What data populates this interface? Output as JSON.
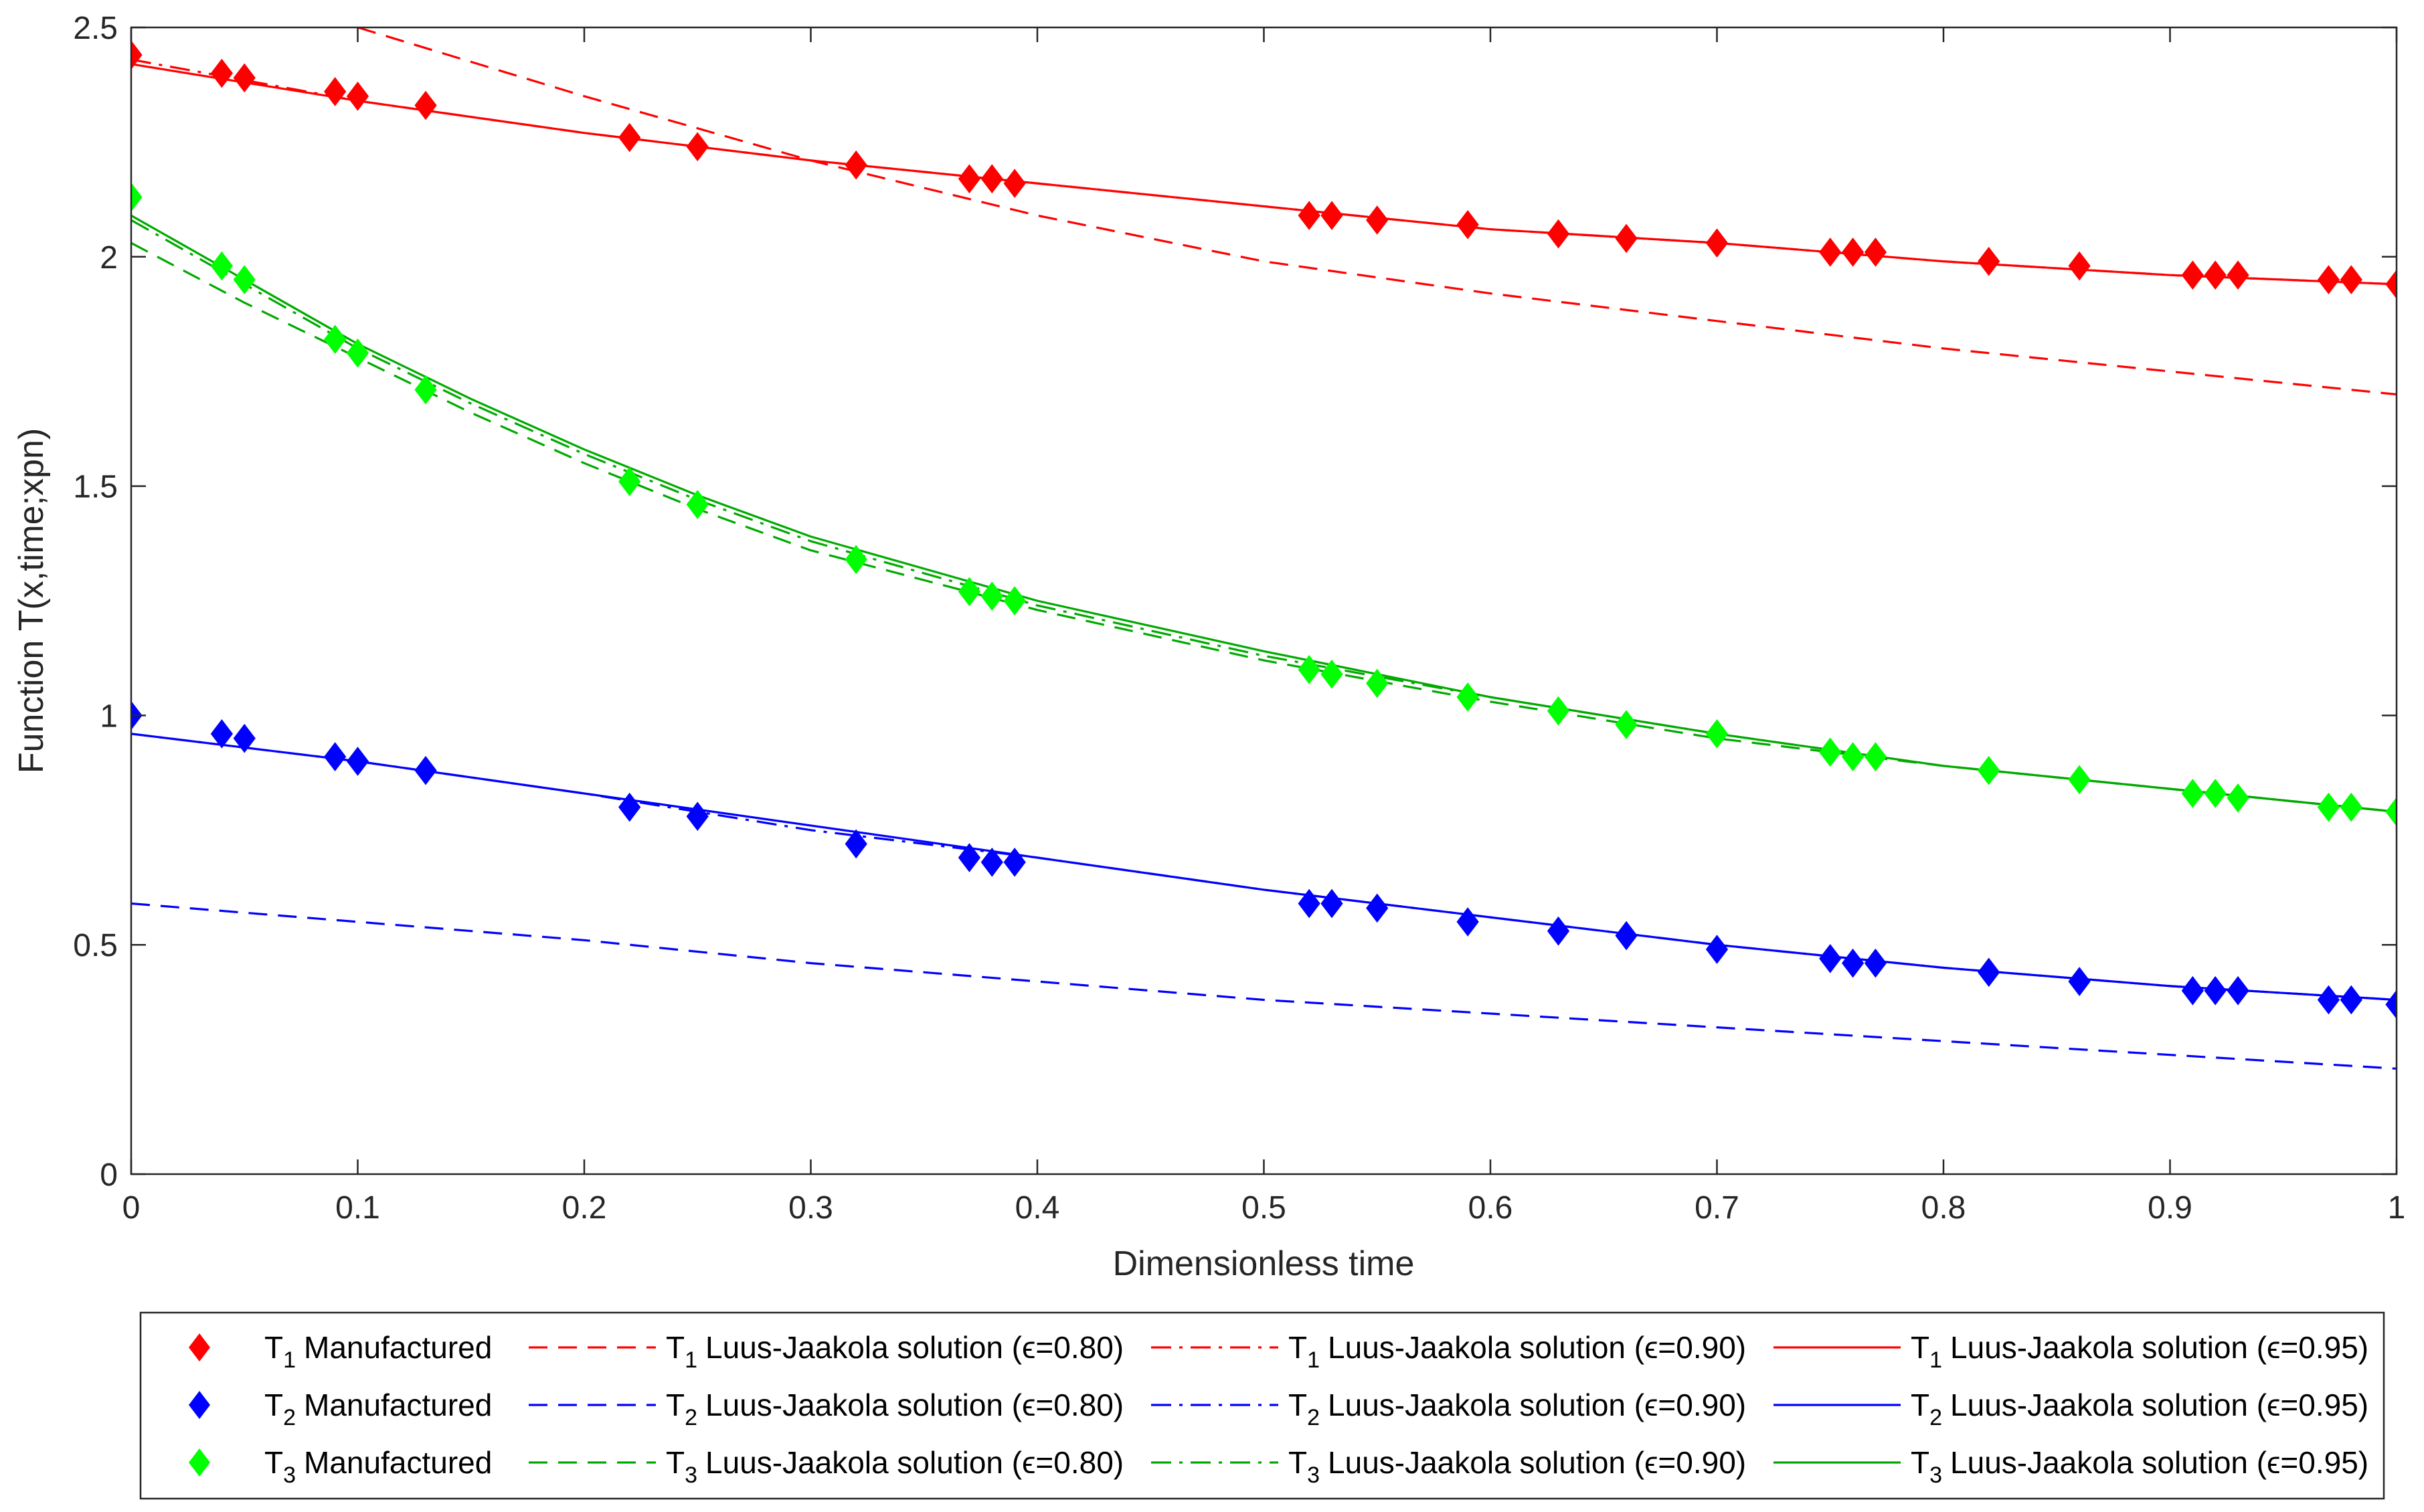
{
  "chart_data": {
    "type": "line",
    "title": "",
    "xlabel": "Dimensionless time",
    "ylabel": "Function T(x,time;xpn)",
    "xlim": [
      0,
      1
    ],
    "ylim": [
      0,
      2.5
    ],
    "xticks": [
      0,
      0.1,
      0.2,
      0.3,
      0.4,
      0.5,
      0.6,
      0.7,
      0.8,
      0.9,
      1
    ],
    "xtick_labels": [
      "0",
      "0.1",
      "0.2",
      "0.3",
      "0.4",
      "0.5",
      "0.6",
      "0.7",
      "0.8",
      "0.9",
      "1"
    ],
    "yticks": [
      0,
      0.5,
      1,
      1.5,
      2,
      2.5
    ],
    "ytick_labels": [
      "0",
      "0.5",
      "1",
      "1.5",
      "2",
      "2.5"
    ],
    "grid": false,
    "legend_position": "bottom-outside",
    "colors": {
      "T1": "#ff0000",
      "T2": "#0000ff",
      "T3": "#00aa00",
      "T3_marker": "#00ff00"
    },
    "series": [
      {
        "name": "T1 Manufactured",
        "sym": "T",
        "sub": "1",
        "text": "Manufactured",
        "kind": "marker",
        "color": "#ff0000",
        "x": [
          0,
          0.04,
          0.05,
          0.09,
          0.1,
          0.13,
          0.22,
          0.25,
          0.32,
          0.37,
          0.38,
          0.39,
          0.52,
          0.53,
          0.55,
          0.59,
          0.63,
          0.66,
          0.7,
          0.75,
          0.76,
          0.77,
          0.82,
          0.86,
          0.91,
          0.92,
          0.93,
          0.97,
          0.98,
          1.0
        ],
        "y": [
          2.44,
          2.4,
          2.39,
          2.36,
          2.35,
          2.33,
          2.26,
          2.24,
          2.2,
          2.17,
          2.17,
          2.16,
          2.09,
          2.09,
          2.08,
          2.07,
          2.05,
          2.04,
          2.03,
          2.01,
          2.01,
          2.01,
          1.99,
          1.98,
          1.96,
          1.96,
          1.96,
          1.95,
          1.95,
          1.94
        ]
      },
      {
        "name": "T1 Luus-Jaakola solution (ε=0.80)",
        "sym": "T",
        "sub": "1",
        "text": "Luus-Jaakola solution (ϵ=0.80)",
        "kind": "dashed",
        "color": "#ff0000",
        "x": [
          0.1,
          0.2,
          0.3,
          0.4,
          0.5,
          0.6,
          0.7,
          0.8,
          0.9,
          1.0
        ],
        "y": [
          2.5,
          2.35,
          2.21,
          2.09,
          1.99,
          1.92,
          1.86,
          1.8,
          1.75,
          1.7
        ]
      },
      {
        "name": "T1 Luus-Jaakola solution (ε=0.90)",
        "sym": "T",
        "sub": "1",
        "text": "Luus-Jaakola solution (ϵ=0.90)",
        "kind": "dashdot",
        "color": "#ff0000",
        "x": [
          0,
          0.1,
          0.2,
          0.3,
          0.4,
          0.5,
          0.6,
          0.7,
          0.8,
          0.9,
          1.0
        ],
        "y": [
          2.43,
          2.34,
          2.27,
          2.21,
          2.16,
          2.11,
          2.06,
          2.03,
          1.99,
          1.96,
          1.94
        ]
      },
      {
        "name": "T1 Luus-Jaakola solution (ε=0.95)",
        "sym": "T",
        "sub": "1",
        "text": "Luus-Jaakola solution (ϵ=0.95)",
        "kind": "solid",
        "color": "#ff0000",
        "x": [
          0,
          0.1,
          0.2,
          0.3,
          0.4,
          0.5,
          0.6,
          0.7,
          0.8,
          0.9,
          1.0
        ],
        "y": [
          2.42,
          2.34,
          2.27,
          2.21,
          2.16,
          2.11,
          2.06,
          2.03,
          1.99,
          1.96,
          1.94
        ]
      },
      {
        "name": "T2 Manufactured",
        "sym": "T",
        "sub": "2",
        "text": "Manufactured",
        "kind": "marker",
        "color": "#0000ff",
        "x": [
          0,
          0.04,
          0.05,
          0.09,
          0.1,
          0.13,
          0.22,
          0.25,
          0.32,
          0.37,
          0.38,
          0.39,
          0.52,
          0.53,
          0.55,
          0.59,
          0.63,
          0.66,
          0.7,
          0.75,
          0.76,
          0.77,
          0.82,
          0.86,
          0.91,
          0.92,
          0.93,
          0.97,
          0.98,
          1.0
        ],
        "y": [
          1.0,
          0.96,
          0.95,
          0.91,
          0.9,
          0.88,
          0.8,
          0.78,
          0.72,
          0.69,
          0.68,
          0.68,
          0.59,
          0.59,
          0.58,
          0.55,
          0.53,
          0.52,
          0.49,
          0.47,
          0.46,
          0.46,
          0.44,
          0.42,
          0.4,
          0.4,
          0.4,
          0.38,
          0.38,
          0.37
        ]
      },
      {
        "name": "T2 Luus-Jaakola solution (ε=0.80)",
        "sym": "T",
        "sub": "2",
        "text": "Luus-Jaakola solution (ϵ=0.80)",
        "kind": "dashed",
        "color": "#0000ff",
        "x": [
          0,
          0.1,
          0.2,
          0.3,
          0.4,
          0.5,
          0.6,
          0.7,
          0.8,
          0.9,
          1.0
        ],
        "y": [
          0.59,
          0.55,
          0.51,
          0.46,
          0.42,
          0.38,
          0.35,
          0.32,
          0.29,
          0.26,
          0.23
        ]
      },
      {
        "name": "T2 Luus-Jaakola solution (ε=0.90)",
        "sym": "T",
        "sub": "2",
        "text": "Luus-Jaakola solution (ϵ=0.90)",
        "kind": "dashdot",
        "color": "#0000ff",
        "x": [
          0,
          0.1,
          0.2,
          0.3,
          0.4,
          0.5,
          0.6,
          0.7,
          0.8,
          0.9,
          1.0
        ],
        "y": [
          0.96,
          0.9,
          0.83,
          0.75,
          0.69,
          0.62,
          0.56,
          0.5,
          0.45,
          0.41,
          0.38
        ]
      },
      {
        "name": "T2 Luus-Jaakola solution (ε=0.95)",
        "sym": "T",
        "sub": "2",
        "text": "Luus-Jaakola solution (ϵ=0.95)",
        "kind": "solid",
        "color": "#0000ff",
        "x": [
          0,
          0.1,
          0.2,
          0.3,
          0.4,
          0.5,
          0.6,
          0.7,
          0.8,
          0.9,
          1.0
        ],
        "y": [
          0.96,
          0.9,
          0.83,
          0.76,
          0.69,
          0.62,
          0.56,
          0.5,
          0.45,
          0.41,
          0.38
        ]
      },
      {
        "name": "T3 Manufactured",
        "sym": "T",
        "sub": "3",
        "text": "Manufactured",
        "kind": "marker",
        "color": "#00ff00",
        "x": [
          0,
          0.04,
          0.05,
          0.09,
          0.1,
          0.13,
          0.22,
          0.25,
          0.32,
          0.37,
          0.38,
          0.39,
          0.52,
          0.53,
          0.55,
          0.59,
          0.63,
          0.66,
          0.7,
          0.75,
          0.76,
          0.77,
          0.82,
          0.86,
          0.91,
          0.92,
          0.93,
          0.97,
          0.98,
          1.0
        ],
        "y": [
          2.13,
          1.98,
          1.95,
          1.82,
          1.79,
          1.71,
          1.51,
          1.46,
          1.34,
          1.27,
          1.26,
          1.25,
          1.1,
          1.09,
          1.07,
          1.04,
          1.01,
          0.98,
          0.96,
          0.92,
          0.91,
          0.91,
          0.88,
          0.86,
          0.83,
          0.83,
          0.82,
          0.8,
          0.8,
          0.79
        ]
      },
      {
        "name": "T3 Luus-Jaakola solution (ε=0.80)",
        "sym": "T",
        "sub": "3",
        "text": "Luus-Jaakola solution (ϵ=0.80)",
        "kind": "dashed",
        "color": "#00aa00",
        "x": [
          0,
          0.05,
          0.1,
          0.15,
          0.2,
          0.25,
          0.3,
          0.4,
          0.5,
          0.6,
          0.7,
          0.8,
          0.9,
          1.0
        ],
        "y": [
          2.03,
          1.9,
          1.78,
          1.66,
          1.55,
          1.45,
          1.36,
          1.23,
          1.12,
          1.03,
          0.95,
          0.89,
          0.84,
          0.79
        ]
      },
      {
        "name": "T3 Luus-Jaakola solution (ε=0.90)",
        "sym": "T",
        "sub": "3",
        "text": "Luus-Jaakola solution (ϵ=0.90)",
        "kind": "dashdot",
        "color": "#00aa00",
        "x": [
          0,
          0.05,
          0.1,
          0.15,
          0.2,
          0.25,
          0.3,
          0.4,
          0.5,
          0.6,
          0.7,
          0.8,
          0.9,
          1.0
        ],
        "y": [
          2.08,
          1.94,
          1.8,
          1.68,
          1.57,
          1.47,
          1.38,
          1.24,
          1.13,
          1.04,
          0.96,
          0.89,
          0.84,
          0.79
        ]
      },
      {
        "name": "T3 Luus-Jaakola solution (ε=0.95)",
        "sym": "T",
        "sub": "3",
        "text": "Luus-Jaakola solution (ϵ=0.95)",
        "kind": "solid",
        "color": "#00aa00",
        "x": [
          0,
          0.05,
          0.1,
          0.15,
          0.2,
          0.25,
          0.3,
          0.4,
          0.5,
          0.6,
          0.7,
          0.8,
          0.9,
          1.0
        ],
        "y": [
          2.09,
          1.95,
          1.81,
          1.69,
          1.58,
          1.48,
          1.39,
          1.25,
          1.14,
          1.04,
          0.96,
          0.89,
          0.84,
          0.79
        ]
      }
    ]
  }
}
